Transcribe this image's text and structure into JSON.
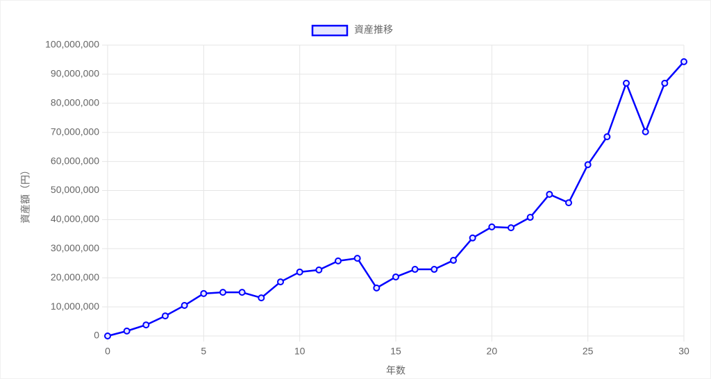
{
  "chart_data": {
    "type": "line",
    "legend_position": "top",
    "xlabel": "年数",
    "ylabel": "資産額（円）",
    "x": [
      0,
      1,
      2,
      3,
      4,
      5,
      6,
      7,
      8,
      9,
      10,
      11,
      12,
      13,
      14,
      15,
      16,
      17,
      18,
      19,
      20,
      21,
      22,
      23,
      24,
      25,
      26,
      27,
      28,
      29,
      30
    ],
    "series": [
      {
        "name": "資産推移",
        "color": "#0000ff",
        "values": [
          0,
          1700000,
          3800000,
          6900000,
          10500000,
          14600000,
          15000000,
          15000000,
          13100000,
          18600000,
          22000000,
          22700000,
          25800000,
          26700000,
          16500000,
          20300000,
          22900000,
          22900000,
          26000000,
          33700000,
          37500000,
          37200000,
          40800000,
          48700000,
          45800000,
          58900000,
          68500000,
          86900000,
          70200000,
          86900000,
          94300000
        ]
      }
    ],
    "xlim": [
      0,
      30
    ],
    "xticks": [
      0,
      5,
      10,
      15,
      20,
      25,
      30
    ],
    "ylim": [
      0,
      100000000
    ],
    "yticks": [
      0,
      {
        "value": 10000000,
        "label": "10,000,000"
      },
      {
        "value": 20000000,
        "label": "20,000,000"
      },
      {
        "value": 30000000,
        "label": "30,000,000"
      },
      {
        "value": 40000000,
        "label": "40,000,000"
      },
      {
        "value": 50000000,
        "label": "50,000,000"
      },
      {
        "value": 60000000,
        "label": "60,000,000"
      },
      {
        "value": 70000000,
        "label": "70,000,000"
      },
      {
        "value": 80000000,
        "label": "80,000,000"
      },
      {
        "value": 90000000,
        "label": "90,000,000"
      },
      {
        "value": 100000000,
        "label": "100,000,000"
      }
    ],
    "grid": true
  }
}
